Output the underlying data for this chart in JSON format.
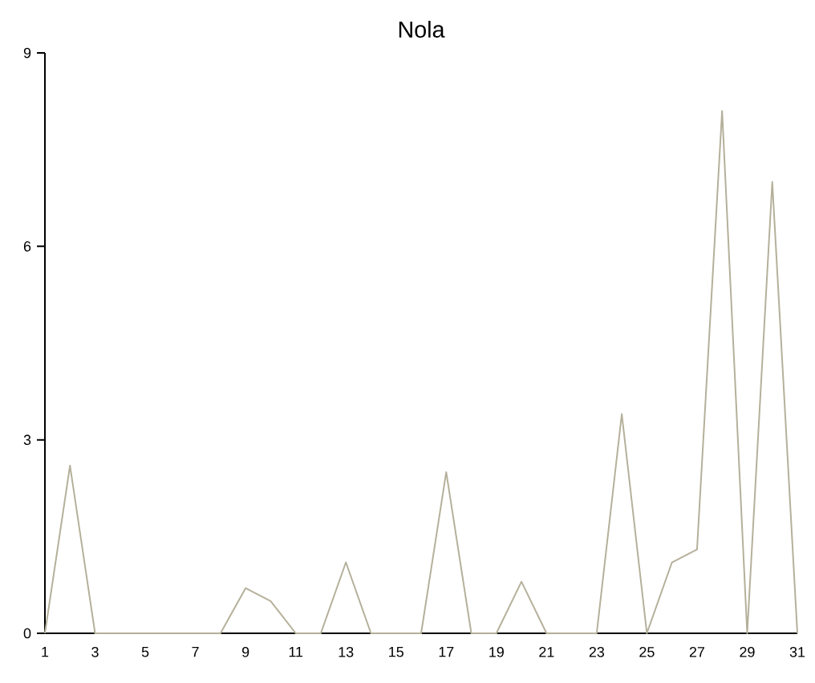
{
  "chart_data": {
    "type": "line",
    "title": "Nola",
    "x": [
      1,
      2,
      3,
      4,
      5,
      6,
      7,
      8,
      9,
      10,
      11,
      12,
      13,
      14,
      15,
      16,
      17,
      18,
      19,
      20,
      21,
      22,
      23,
      24,
      25,
      26,
      27,
      28,
      29,
      30,
      31
    ],
    "series": [
      {
        "color": "#b5b09a",
        "values": [
          0,
          2.6,
          0,
          0,
          0,
          0,
          0,
          0,
          0.7,
          0.5,
          0,
          0,
          1.1,
          0,
          0,
          0,
          2.5,
          0,
          0,
          0.8,
          0,
          0,
          0,
          3.4,
          0,
          1.1,
          1.3,
          8.1,
          0,
          7.0,
          0
        ]
      }
    ],
    "xlim": [
      1,
      31
    ],
    "xticks": [
      1,
      3,
      5,
      7,
      9,
      11,
      13,
      15,
      17,
      19,
      21,
      23,
      25,
      27,
      29,
      31
    ],
    "ylim": [
      0,
      9
    ],
    "yticks": [
      0,
      3,
      6,
      9
    ],
    "grid": false,
    "marker": "none",
    "line_style": "solid"
  }
}
